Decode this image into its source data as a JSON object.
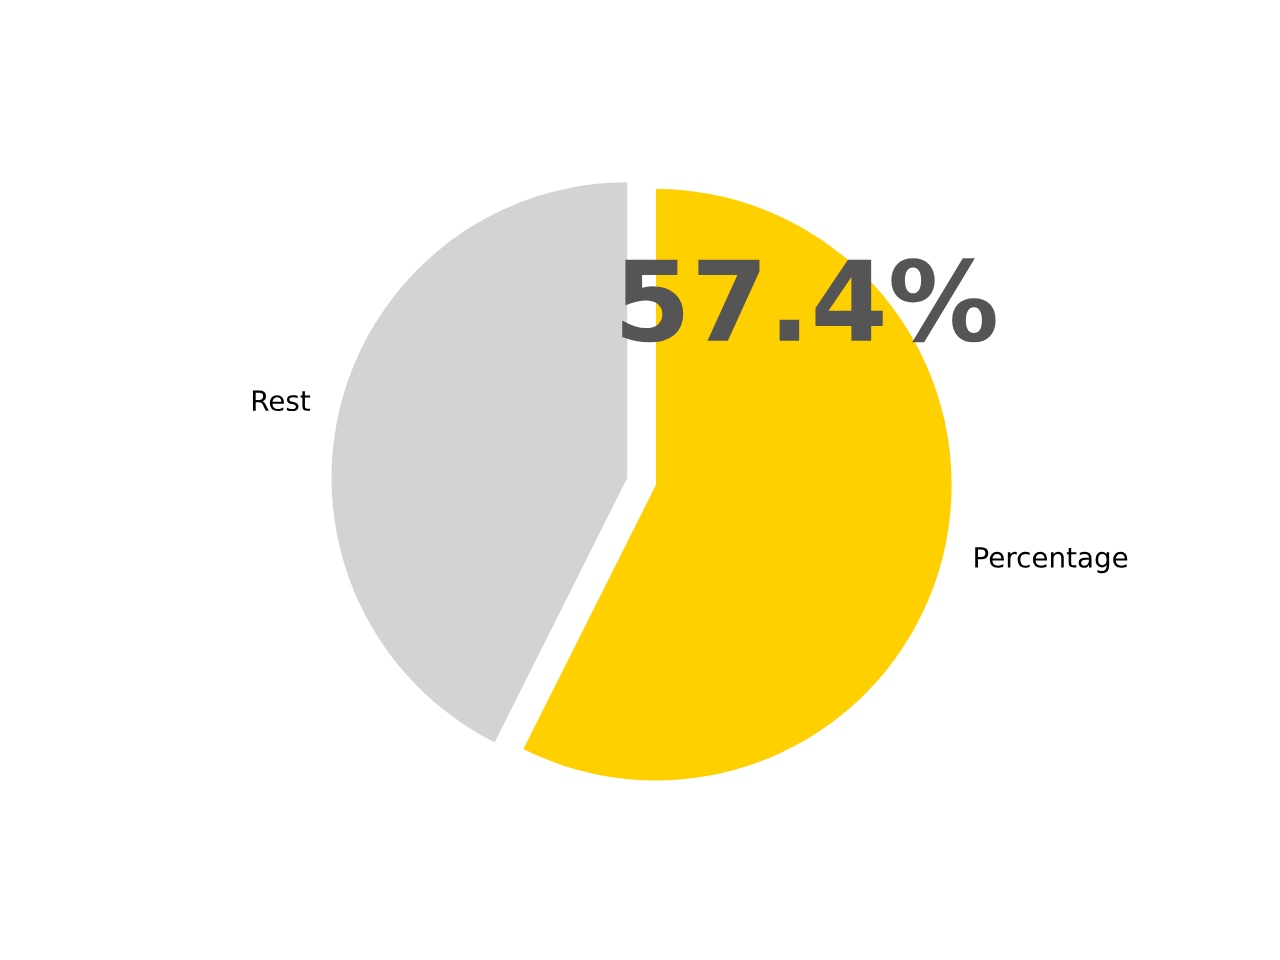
{
  "chart_data": {
    "type": "pie",
    "categories": [
      "Rest",
      "Percentage"
    ],
    "values": [
      42.6,
      57.4
    ],
    "colors": [
      "#d3d3d3",
      "#ffd000"
    ],
    "annotations": [
      "57.4%"
    ]
  }
}
